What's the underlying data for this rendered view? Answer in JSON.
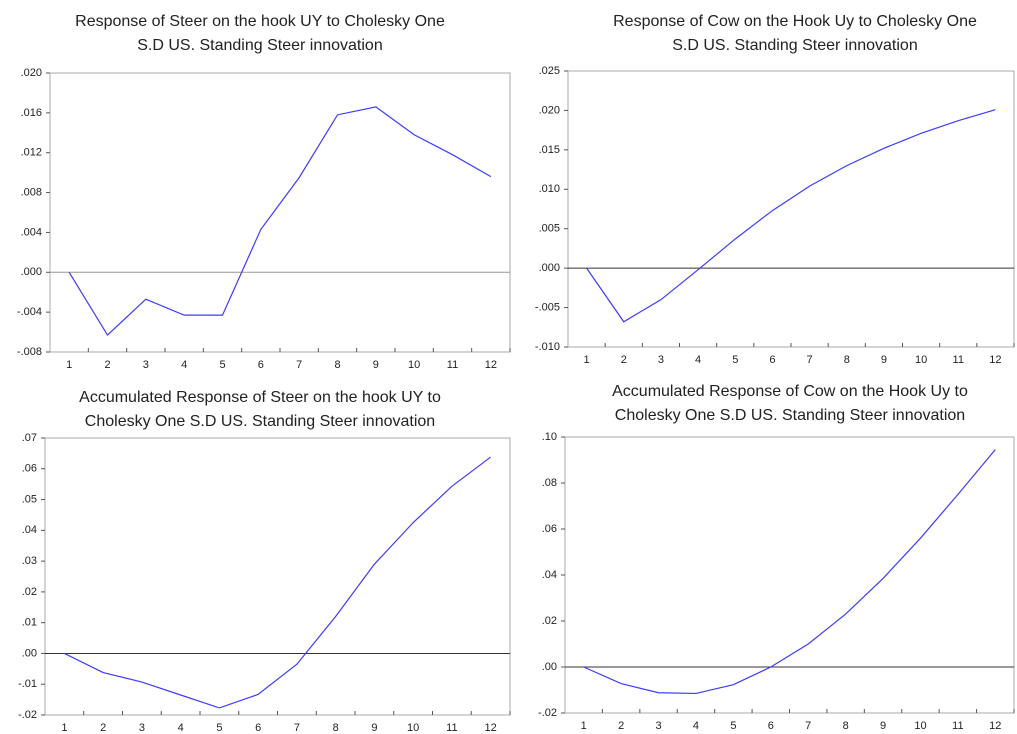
{
  "chart_data": [
    {
      "type": "line",
      "title": [
        "Response of Steer on the hook UY to Cholesky One",
        "S.D US. Standing Steer innovation"
      ],
      "categories": [
        "1",
        "2",
        "3",
        "4",
        "5",
        "6",
        "7",
        "8",
        "9",
        "10",
        "11",
        "12"
      ],
      "series": [
        {
          "color": "#3c3cff",
          "values": [
            0,
            -0.0063,
            -0.0027,
            -0.0043,
            -0.0043,
            0.0043,
            0.0095,
            0.0158,
            0.0166,
            0.0138,
            0.0118,
            0.0096
          ]
        }
      ],
      "ylim": [
        -0.008,
        0.02
      ],
      "yticks": [
        {
          "value": -0.008,
          "label": "-.008"
        },
        {
          "value": -0.004,
          "label": "-.004"
        },
        {
          "value": 0,
          "label": ".000"
        },
        {
          "value": 0.004,
          "label": ".004"
        },
        {
          "value": 0.008,
          "label": ".008"
        },
        {
          "value": 0.012,
          "label": ".012"
        },
        {
          "value": 0.016,
          "label": ".016"
        },
        {
          "value": 0.02,
          "label": ".020"
        }
      ]
    },
    {
      "type": "line",
      "title": [
        "Response of Cow on the Hook Uy to Cholesky One",
        "S.D US. Standing Steer innovation"
      ],
      "categories": [
        "1",
        "2",
        "3",
        "4",
        "5",
        "6",
        "7",
        "8",
        "9",
        "10",
        "11",
        "12"
      ],
      "series": [
        {
          "color": "#3c3cff",
          "values": [
            0,
            -0.0068,
            -0.004,
            -0.0002,
            0.0037,
            0.0073,
            0.0104,
            0.013,
            0.0152,
            0.0171,
            0.0187,
            0.0201
          ]
        }
      ],
      "ylim": [
        -0.01,
        0.025
      ],
      "yticks": [
        {
          "value": -0.01,
          "label": "-.010"
        },
        {
          "value": -0.005,
          "label": "-.005"
        },
        {
          "value": 0,
          "label": ".000"
        },
        {
          "value": 0.005,
          "label": ".005"
        },
        {
          "value": 0.01,
          "label": ".010"
        },
        {
          "value": 0.015,
          "label": ".015"
        },
        {
          "value": 0.02,
          "label": ".020"
        },
        {
          "value": 0.025,
          "label": ".025"
        }
      ]
    },
    {
      "type": "line",
      "title": [
        "Accumulated Response of Steer on the hook UY to",
        "Cholesky One S.D US. Standing Steer innovation"
      ],
      "categories": [
        "1",
        "2",
        "3",
        "4",
        "5",
        "6",
        "7",
        "8",
        "9",
        "10",
        "11",
        "12"
      ],
      "series": [
        {
          "color": "#3c3cff",
          "values": [
            0,
            -0.0062,
            -0.0093,
            -0.0135,
            -0.0177,
            -0.0133,
            -0.0035,
            0.012,
            0.029,
            0.0425,
            0.0543,
            0.0638
          ]
        }
      ],
      "ylim": [
        -0.02,
        0.07
      ],
      "yticks": [
        {
          "value": -0.02,
          "label": "-.02"
        },
        {
          "value": -0.01,
          "label": "-.01"
        },
        {
          "value": 0,
          "label": ".00"
        },
        {
          "value": 0.01,
          "label": ".01"
        },
        {
          "value": 0.02,
          "label": ".02"
        },
        {
          "value": 0.03,
          "label": ".03"
        },
        {
          "value": 0.04,
          "label": ".04"
        },
        {
          "value": 0.05,
          "label": ".05"
        },
        {
          "value": 0.06,
          "label": ".06"
        },
        {
          "value": 0.07,
          "label": ".07"
        }
      ]
    },
    {
      "type": "line",
      "title": [
        "Accumulated Response of Cow on the Hook Uy to",
        "Cholesky One S.D US. Standing Steer innovation"
      ],
      "categories": [
        "1",
        "2",
        "3",
        "4",
        "5",
        "6",
        "7",
        "8",
        "9",
        "10",
        "11",
        "12"
      ],
      "series": [
        {
          "color": "#3c3cff",
          "values": [
            0,
            -0.0072,
            -0.0112,
            -0.0115,
            -0.0077,
            0,
            0.01,
            0.023,
            0.0385,
            0.056,
            0.075,
            0.0945
          ]
        }
      ],
      "ylim": [
        -0.02,
        0.1
      ],
      "yticks": [
        {
          "value": -0.02,
          "label": "-.02"
        },
        {
          "value": 0,
          "label": ".00"
        },
        {
          "value": 0.02,
          "label": ".02"
        },
        {
          "value": 0.04,
          "label": ".04"
        },
        {
          "value": 0.06,
          "label": ".06"
        },
        {
          "value": 0.08,
          "label": ".08"
        },
        {
          "value": 0.1,
          "label": ".10"
        }
      ]
    }
  ]
}
